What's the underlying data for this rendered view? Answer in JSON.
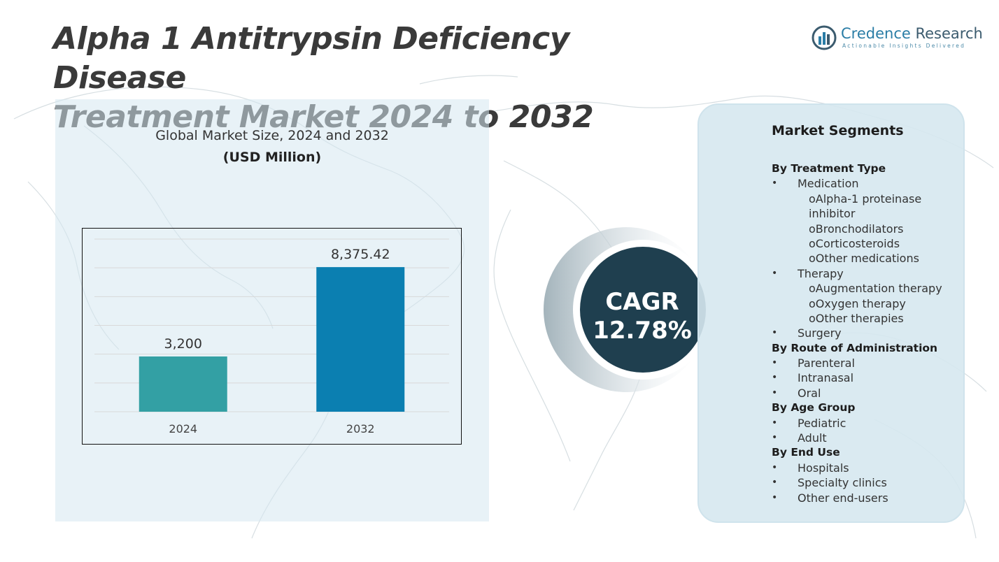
{
  "header": {
    "title_line1": "Alpha 1 Antitrypsin Deficiency Disease",
    "title_line2": "Treatment Market 2024 to 2032"
  },
  "brand": {
    "name_part1": "Credence",
    "name_part2": "Research",
    "tagline": "Actionable Insights Delivered",
    "icon": "bar-chart-logo-icon",
    "color": "#2a7da6"
  },
  "chart_data": {
    "type": "bar",
    "title": "Global Market Size, 2024 and 2032",
    "subtitle": "(USD Million)",
    "categories": [
      "2024",
      "2032"
    ],
    "values": [
      3200,
      8375.42
    ],
    "value_labels": [
      "3,200",
      "8,375.42"
    ],
    "bar_colors": [
      "#33a0a4",
      "#0b7fb1"
    ],
    "ylim": [
      0,
      10000
    ],
    "grid": true,
    "xlabel": "",
    "ylabel": ""
  },
  "cagr": {
    "label": "CAGR",
    "value": "12.78%",
    "color": "#1f3f4f"
  },
  "segments": {
    "title": "Market Segments",
    "lines": [
      {
        "level": "head",
        "text": "By Treatment Type"
      },
      {
        "level": "l1",
        "text": "Medication"
      },
      {
        "level": "l2",
        "text": "oAlpha-1 proteinase"
      },
      {
        "level": "l2",
        "text": "inhibitor"
      },
      {
        "level": "l2",
        "text": "oBronchodilators"
      },
      {
        "level": "l2",
        "text": "oCorticosteroids"
      },
      {
        "level": "l2",
        "text": "oOther medications"
      },
      {
        "level": "l1",
        "text": "Therapy"
      },
      {
        "level": "l2",
        "text": "oAugmentation therapy"
      },
      {
        "level": "l2",
        "text": "oOxygen therapy"
      },
      {
        "level": "l2",
        "text": "oOther therapies"
      },
      {
        "level": "l1",
        "text": "Surgery"
      },
      {
        "level": "head",
        "text": "By Route of Administration"
      },
      {
        "level": "l1",
        "text": "Parenteral"
      },
      {
        "level": "l1",
        "text": "Intranasal"
      },
      {
        "level": "l1",
        "text": "Oral"
      },
      {
        "level": "head",
        "text": "By Age Group"
      },
      {
        "level": "l1",
        "text": "Pediatric"
      },
      {
        "level": "l1",
        "text": "Adult"
      },
      {
        "level": "head",
        "text": "By End Use"
      },
      {
        "level": "l1",
        "text": "Hospitals"
      },
      {
        "level": "l1",
        "text": "Specialty clinics"
      },
      {
        "level": "l1",
        "text": "Other end-users"
      }
    ]
  }
}
